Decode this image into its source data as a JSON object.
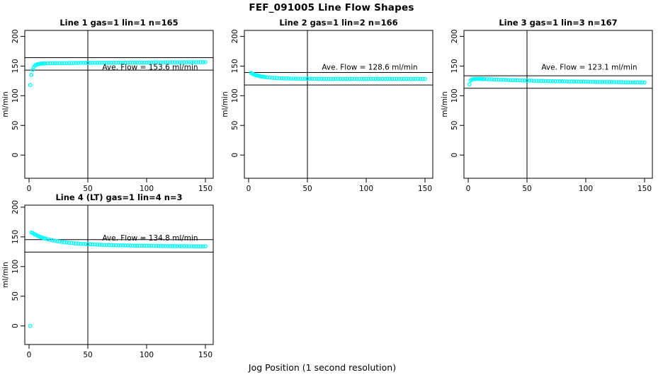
{
  "figure": {
    "title": "FEF_091005  Line Flow Shapes",
    "xlabel": "Jog Position (1 second resolution)",
    "ylabel": "ml/min",
    "point_color": "#00FFFF",
    "line_color": "#000000"
  },
  "chart_data": [
    {
      "type": "scatter",
      "title": "Line 1 gas=1 lin=1 n=165",
      "annotation": "Ave. Flow =  153.6  ml/min",
      "ave_flow": 153.6,
      "ref_line_upper": 164.1,
      "ref_line_lower": 143.1,
      "vline_x": 50,
      "ylabel": "ml/min",
      "x_ticks": [
        0,
        50,
        100,
        150
      ],
      "y_ticks": [
        0,
        50,
        100,
        150,
        200
      ],
      "ylim": [
        0,
        200
      ],
      "xlim": [
        0,
        155
      ],
      "x": [
        1,
        2,
        3,
        4,
        5,
        6,
        7,
        8,
        9,
        10,
        11,
        12,
        13,
        14,
        16,
        18,
        20,
        22,
        24,
        26,
        28,
        30,
        32,
        34,
        36,
        38,
        40,
        42,
        44,
        46,
        48,
        50,
        52,
        54,
        56,
        58,
        60,
        62,
        64,
        66,
        68,
        70,
        72,
        74,
        76,
        78,
        80,
        82,
        84,
        86,
        88,
        90,
        92,
        94,
        96,
        98,
        100,
        102,
        104,
        106,
        108,
        110,
        112,
        114,
        116,
        118,
        120,
        122,
        124,
        126,
        128,
        130,
        132,
        134,
        136,
        138,
        140,
        142,
        144,
        146,
        148,
        150
      ],
      "y": [
        118.0,
        135.0,
        143.5,
        148.0,
        150.5,
        152.0,
        152.8,
        153.3,
        153.7,
        154.0,
        154.2,
        154.3,
        154.4,
        154.4,
        154.5,
        154.6,
        154.7,
        154.8,
        154.8,
        154.9,
        154.9,
        155.0,
        155.0,
        155.1,
        155.1,
        155.2,
        155.2,
        155.2,
        155.3,
        155.3,
        155.3,
        155.4,
        155.4,
        155.4,
        155.5,
        155.5,
        155.5,
        155.6,
        155.6,
        155.6,
        155.7,
        155.7,
        155.7,
        155.7,
        155.8,
        155.8,
        155.8,
        155.8,
        155.8,
        155.9,
        155.9,
        155.9,
        155.9,
        155.9,
        156.0,
        156.0,
        156.0,
        156.0,
        156.0,
        156.1,
        156.1,
        156.1,
        156.1,
        156.1,
        156.2,
        156.2,
        156.2,
        156.2,
        156.2,
        156.3,
        156.3,
        156.3,
        156.3,
        156.3,
        156.4,
        156.4,
        156.4,
        156.4,
        156.4,
        156.5,
        156.5,
        156.5
      ]
    },
    {
      "type": "scatter",
      "title": "Line 2 gas=1 lin=2 n=166",
      "annotation": "Ave. Flow =  128.6  ml/min",
      "ave_flow": 128.6,
      "ref_line_upper": 139.1,
      "ref_line_lower": 118.1,
      "vline_x": 50,
      "ylabel": "ml/min",
      "x_ticks": [
        0,
        50,
        100,
        150
      ],
      "y_ticks": [
        0,
        50,
        100,
        150,
        200
      ],
      "ylim": [
        0,
        200
      ],
      "xlim": [
        0,
        155
      ],
      "x": [
        2,
        3,
        4,
        5,
        6,
        7,
        8,
        9,
        10,
        11,
        12,
        13,
        14,
        16,
        18,
        20,
        22,
        24,
        26,
        28,
        30,
        32,
        34,
        36,
        38,
        40,
        42,
        44,
        46,
        48,
        50,
        52,
        54,
        56,
        58,
        60,
        62,
        64,
        66,
        68,
        70,
        72,
        74,
        76,
        78,
        80,
        82,
        84,
        86,
        88,
        90,
        92,
        94,
        96,
        98,
        100,
        102,
        104,
        106,
        108,
        110,
        112,
        114,
        116,
        118,
        120,
        122,
        124,
        126,
        128,
        130,
        132,
        134,
        136,
        138,
        140,
        142,
        144,
        146,
        148,
        150
      ],
      "y": [
        138.5,
        137.2,
        136.2,
        135.4,
        134.8,
        134.2,
        133.7,
        133.2,
        132.8,
        132.4,
        132.1,
        131.8,
        131.5,
        131.0,
        130.6,
        130.2,
        129.9,
        129.7,
        129.5,
        129.3,
        129.2,
        129.1,
        129.0,
        128.9,
        128.8,
        128.8,
        128.7,
        128.7,
        128.6,
        128.6,
        128.6,
        128.5,
        128.5,
        128.5,
        128.4,
        128.4,
        128.4,
        128.4,
        128.4,
        128.3,
        128.3,
        128.3,
        128.3,
        128.3,
        128.3,
        128.3,
        128.3,
        128.3,
        128.3,
        128.3,
        128.3,
        128.3,
        128.2,
        128.2,
        128.2,
        128.2,
        128.2,
        128.2,
        128.2,
        128.2,
        128.2,
        128.2,
        128.2,
        128.2,
        128.2,
        128.2,
        128.2,
        128.2,
        128.2,
        128.2,
        128.2,
        128.2,
        128.2,
        128.2,
        128.2,
        128.2,
        128.2,
        128.2,
        128.2,
        128.2,
        128.2
      ]
    },
    {
      "type": "scatter",
      "title": "Line 3 gas=1 lin=3 n=167",
      "annotation": "Ave. Flow =  123.1  ml/min",
      "ave_flow": 123.1,
      "ref_line_upper": 133.6,
      "ref_line_lower": 112.6,
      "vline_x": 50,
      "ylabel": "ml/min",
      "x_ticks": [
        0,
        50,
        100,
        150
      ],
      "y_ticks": [
        0,
        50,
        100,
        150,
        200
      ],
      "ylim": [
        0,
        200
      ],
      "xlim": [
        0,
        155
      ],
      "x": [
        1,
        2,
        3,
        4,
        5,
        6,
        7,
        8,
        9,
        10,
        11,
        12,
        13,
        14,
        16,
        18,
        20,
        22,
        24,
        26,
        28,
        30,
        32,
        34,
        36,
        38,
        40,
        42,
        44,
        46,
        48,
        50,
        52,
        54,
        56,
        58,
        60,
        62,
        64,
        66,
        68,
        70,
        72,
        74,
        76,
        78,
        80,
        82,
        84,
        86,
        88,
        90,
        92,
        94,
        96,
        98,
        100,
        102,
        104,
        106,
        108,
        110,
        112,
        114,
        116,
        118,
        120,
        122,
        124,
        126,
        128,
        130,
        132,
        134,
        136,
        138,
        140,
        142,
        144,
        146,
        148,
        150
      ],
      "y": [
        119.0,
        125.5,
        127.2,
        127.9,
        128.2,
        128.3,
        128.4,
        128.4,
        128.4,
        128.3,
        128.3,
        128.3,
        128.2,
        128.1,
        128.0,
        127.8,
        127.6,
        127.4,
        127.3,
        127.1,
        127.0,
        126.8,
        126.7,
        126.5,
        126.4,
        126.2,
        126.1,
        126.0,
        125.8,
        125.7,
        125.6,
        125.5,
        125.4,
        125.3,
        125.2,
        125.1,
        125.0,
        124.9,
        124.8,
        124.7,
        124.7,
        124.6,
        124.5,
        124.4,
        124.4,
        124.3,
        124.2,
        124.1,
        124.1,
        124.0,
        123.9,
        123.9,
        123.8,
        123.7,
        123.7,
        123.6,
        123.6,
        123.5,
        123.4,
        123.4,
        123.3,
        123.3,
        123.2,
        123.2,
        123.1,
        123.1,
        123.1,
        123.0,
        123.0,
        122.9,
        122.9,
        122.8,
        122.8,
        122.7,
        122.7,
        122.6,
        122.6,
        122.5,
        122.5,
        122.4,
        122.4,
        122.4
      ]
    },
    {
      "type": "scatter",
      "title": "Line 4 (LT) gas=1 lin=4 n=3",
      "annotation": "Ave. Flow =  134.8  ml/min",
      "ave_flow": 134.8,
      "ref_line_upper": 145.3,
      "ref_line_lower": 124.3,
      "vline_x": 50,
      "ylabel": "ml/min",
      "x_ticks": [
        0,
        50,
        100,
        150
      ],
      "y_ticks": [
        0,
        50,
        100,
        150,
        200
      ],
      "ylim": [
        0,
        200
      ],
      "xlim": [
        0,
        155
      ],
      "x": [
        1,
        2,
        3,
        4,
        5,
        6,
        7,
        8,
        9,
        10,
        11,
        12,
        13,
        14,
        16,
        18,
        20,
        22,
        24,
        26,
        28,
        30,
        32,
        34,
        36,
        38,
        40,
        42,
        44,
        46,
        48,
        50,
        52,
        54,
        56,
        58,
        60,
        62,
        64,
        66,
        68,
        70,
        72,
        74,
        76,
        78,
        80,
        82,
        84,
        86,
        88,
        90,
        92,
        94,
        96,
        98,
        100,
        102,
        104,
        106,
        108,
        110,
        112,
        114,
        116,
        118,
        120,
        122,
        124,
        126,
        128,
        130,
        132,
        134,
        136,
        138,
        140,
        142,
        144,
        146,
        148,
        150
      ],
      "y": [
        0.0,
        157.5,
        156.5,
        155.3,
        154.2,
        153.2,
        152.2,
        151.3,
        150.5,
        149.7,
        149.0,
        148.3,
        147.7,
        147.1,
        146.0,
        145.0,
        144.2,
        143.4,
        142.7,
        142.1,
        141.5,
        141.0,
        140.5,
        140.1,
        139.7,
        139.3,
        139.0,
        138.7,
        138.4,
        138.1,
        137.9,
        137.7,
        137.5,
        137.3,
        137.1,
        136.9,
        136.8,
        136.6,
        136.5,
        136.4,
        136.2,
        136.1,
        136.0,
        135.9,
        135.8,
        135.7,
        135.6,
        135.5,
        135.5,
        135.4,
        135.3,
        135.2,
        135.2,
        135.1,
        135.0,
        135.0,
        134.9,
        134.9,
        134.8,
        134.8,
        134.7,
        134.7,
        134.6,
        134.6,
        134.5,
        134.5,
        134.5,
        134.4,
        134.4,
        134.4,
        134.3,
        134.3,
        134.3,
        134.2,
        134.2,
        134.2,
        134.2,
        134.1,
        134.1,
        134.1,
        134.1,
        134.1
      ]
    }
  ]
}
